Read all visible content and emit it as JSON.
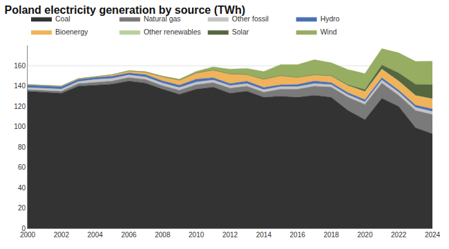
{
  "chart_data": {
    "type": "area",
    "title": "Poland electricity generation by source (TWh)",
    "stacked": true,
    "legend": "top-left",
    "grid": true,
    "x": [
      2000,
      2001,
      2002,
      2003,
      2004,
      2005,
      2006,
      2007,
      2008,
      2009,
      2010,
      2011,
      2012,
      2013,
      2014,
      2015,
      2016,
      2017,
      2018,
      2019,
      2020,
      2021,
      2022,
      2023,
      2024
    ],
    "xlim": [
      2000,
      2024
    ],
    "xticks": [
      2000,
      2002,
      2004,
      2006,
      2008,
      2010,
      2012,
      2014,
      2016,
      2018,
      2020,
      2022,
      2024
    ],
    "ylim": [
      0,
      180
    ],
    "yticks": [
      0,
      20,
      40,
      60,
      80,
      100,
      120,
      140,
      160
    ],
    "series": [
      {
        "name": "Coal",
        "color": "#333333",
        "values": [
          135,
          134,
          133,
          140,
          141,
          142,
          145,
          143,
          137,
          132,
          137,
          139,
          133,
          135,
          129,
          130,
          129,
          131,
          129,
          116,
          107,
          128,
          120,
          99,
          93
        ]
      },
      {
        "name": "Natural gas",
        "color": "#7a7a7a",
        "values": [
          1.5,
          2,
          2,
          2.5,
          3,
          3,
          3.5,
          3.5,
          3.5,
          4,
          4.5,
          4.5,
          5,
          5,
          5,
          7,
          8,
          9,
          10,
          13,
          15,
          15,
          11,
          17,
          19
        ]
      },
      {
        "name": "Other fossil",
        "color": "#c4c4c4",
        "values": [
          2,
          2,
          2,
          2,
          2.5,
          2.5,
          2.5,
          2.5,
          2.5,
          2.5,
          2.5,
          2.5,
          2.5,
          2.5,
          2.5,
          2.5,
          2.5,
          2.5,
          2.5,
          2.5,
          2.5,
          3,
          3,
          3,
          3
        ]
      },
      {
        "name": "Hydro",
        "color": "#4a6fb5",
        "values": [
          2.5,
          2.5,
          2.5,
          2,
          2,
          2.2,
          2,
          2.3,
          2.2,
          2.4,
          2.9,
          2.3,
          2,
          2.4,
          2.2,
          1.8,
          2.1,
          2.6,
          2,
          2,
          2.1,
          2.3,
          2,
          2.3,
          2.5
        ]
      },
      {
        "name": "Bioenergy",
        "color": "#f0b35a",
        "values": [
          0.5,
          0.5,
          0.6,
          0.8,
          1,
          1.5,
          2,
          2.5,
          4,
          5,
          6,
          7.5,
          9.5,
          6.5,
          8,
          9,
          7,
          6,
          6.5,
          7,
          8,
          8.5,
          9,
          9.5,
          10
        ]
      },
      {
        "name": "Other renewables",
        "color": "#b8d19c",
        "values": [
          0,
          0,
          0,
          0,
          0,
          0,
          0,
          0,
          0,
          0,
          0,
          0,
          0,
          0,
          0,
          0,
          0,
          0,
          0,
          0,
          0,
          0,
          0,
          0,
          0
        ]
      },
      {
        "name": "Solar",
        "color": "#56663f",
        "values": [
          0,
          0,
          0,
          0,
          0,
          0,
          0,
          0,
          0,
          0,
          0,
          0,
          0,
          0,
          0,
          0,
          0,
          0,
          0.3,
          0.7,
          2,
          4,
          8,
          11,
          14
        ]
      },
      {
        "name": "Wind",
        "color": "#97ad62",
        "values": [
          0,
          0,
          0,
          0.1,
          0.1,
          0.1,
          0.3,
          0.5,
          0.8,
          1,
          1.7,
          3.2,
          4.7,
          6,
          7.7,
          10.9,
          12.6,
          14.9,
          12.8,
          15.1,
          15.8,
          16.2,
          19.8,
          22.5,
          23
        ]
      }
    ]
  }
}
